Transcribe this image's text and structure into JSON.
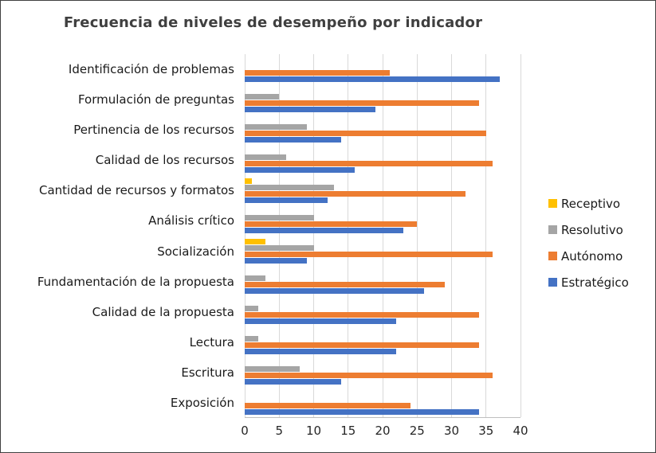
{
  "frame": {
    "background": "#ffffff",
    "border_color": "#404040"
  },
  "chart_data": {
    "type": "bar",
    "orientation": "horizontal",
    "title": "Frecuencia de niveles de desempeño por indicador",
    "categories": [
      "Identificación de problemas",
      "Formulación de preguntas",
      "Pertinencia de los recursos",
      "Calidad de los recursos",
      "Cantidad de recursos y formatos",
      "Análisis crítico",
      "Socialización",
      "Fundamentación de la propuesta",
      "Calidad de la propuesta",
      "Lectura",
      "Escritura",
      "Exposición"
    ],
    "series": [
      {
        "name": "Receptivo",
        "color": "#FFC000",
        "values": [
          0,
          0,
          0,
          0,
          1,
          0,
          3,
          0,
          0,
          0,
          0,
          0
        ]
      },
      {
        "name": "Resolutivo",
        "color": "#A5A5A5",
        "values": [
          0,
          5,
          9,
          6,
          13,
          10,
          10,
          3,
          2,
          2,
          8,
          0
        ]
      },
      {
        "name": "Autónomo",
        "color": "#ED7D31",
        "values": [
          21,
          34,
          35,
          36,
          32,
          25,
          36,
          29,
          34,
          34,
          36,
          24
        ]
      },
      {
        "name": "Estratégico",
        "color": "#4472C4",
        "values": [
          37,
          19,
          14,
          16,
          12,
          23,
          9,
          26,
          22,
          22,
          14,
          34
        ]
      }
    ],
    "x_axis": {
      "min": 0,
      "max": 40,
      "step": 5,
      "tick_labels": [
        "0",
        "5",
        "10",
        "15",
        "20",
        "25",
        "30",
        "35",
        "40"
      ]
    },
    "legend": {
      "position": "right",
      "items": [
        "Receptivo",
        "Resolutivo",
        "Autónomo",
        "Estratégico"
      ]
    },
    "grid": true,
    "styles": {
      "gridline_color": "#D9D9D9",
      "axis_line_color": "#BFBFBF",
      "title_color": "#3F3F3F",
      "text_color": "#1A1A1A"
    }
  }
}
